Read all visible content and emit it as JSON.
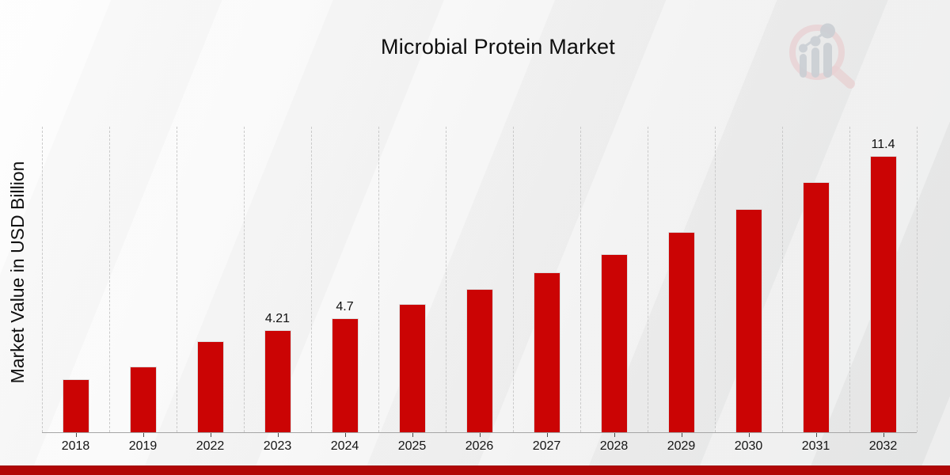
{
  "header": {
    "title": "Microbial Protein Market"
  },
  "colors": {
    "bar": "#cb0404",
    "strip": "#b10606",
    "grid": "#cacaca",
    "axis": "#a6a6a6",
    "text": "#101010",
    "logo_ring": "#e9cdcf",
    "logo_bars": "#c5cad0"
  },
  "chart_data": {
    "type": "bar",
    "title": "Microbial Protein Market",
    "xlabel": "",
    "ylabel": "Market Value in USD Billion",
    "categories": [
      "2018",
      "2019",
      "2022",
      "2023",
      "2024",
      "2025",
      "2026",
      "2027",
      "2028",
      "2029",
      "2030",
      "2031",
      "2032"
    ],
    "values": [
      2.2,
      2.7,
      3.76,
      4.21,
      4.7,
      5.3,
      5.9,
      6.6,
      7.35,
      8.25,
      9.2,
      10.3,
      11.4
    ],
    "bar_labels": [
      "",
      "",
      "",
      "4.21",
      "4.7",
      "",
      "",
      "",
      "",
      "",
      "",
      "",
      "11.4"
    ],
    "ylim": [
      0,
      12.6
    ],
    "grid": "vertical-dashed",
    "legend": "none",
    "bar_color": "#cb0404"
  }
}
